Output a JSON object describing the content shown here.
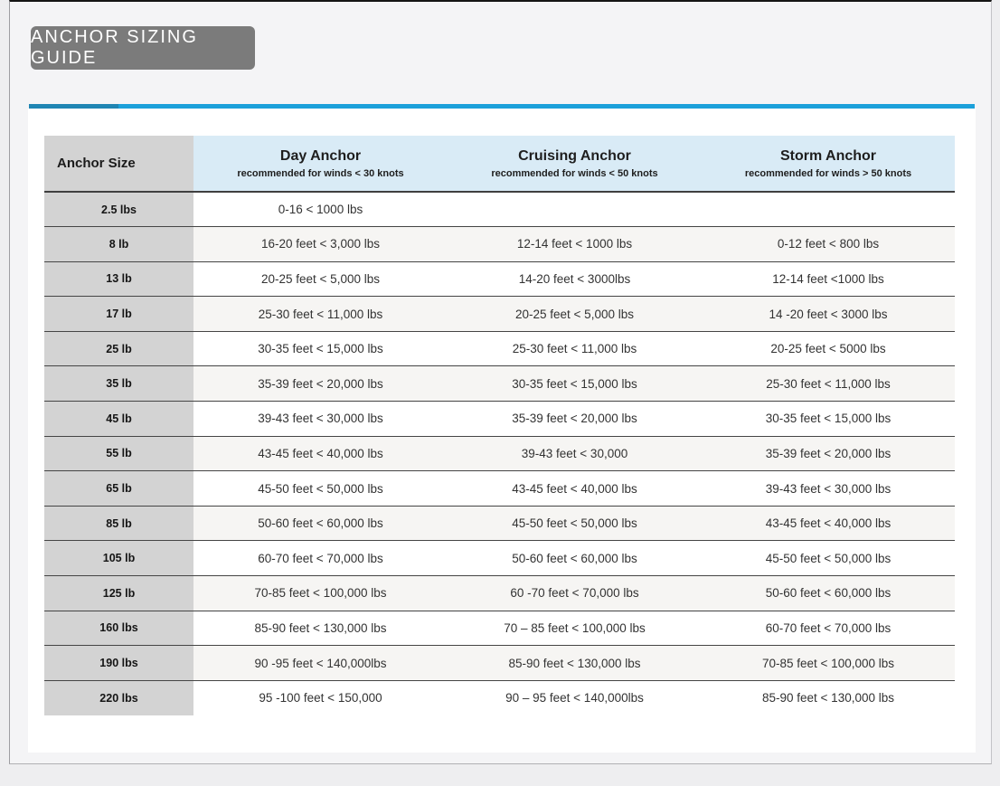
{
  "page": {
    "title": "ANCHOR SIZING GUIDE"
  },
  "colors": {
    "accent_blue": "#1ba0da",
    "accent_blue_dark": "#1f85b3",
    "title_button_bg": "#7b7b7b",
    "header_blue_bg": "#d9ebf6",
    "size_column_bg": "#d3d3d3",
    "zebra_row_bg": "#f6f5f3",
    "row_border": "#454545"
  },
  "table": {
    "columns": [
      {
        "label": "Anchor Size",
        "sublabel": ""
      },
      {
        "label": "Day Anchor",
        "sublabel": "recommended for winds < 30 knots"
      },
      {
        "label": "Cruising Anchor",
        "sublabel": "recommended for winds < 50 knots"
      },
      {
        "label": "Storm Anchor",
        "sublabel": "recommended for winds > 50 knots"
      }
    ],
    "rows": [
      {
        "size": "2.5 lbs",
        "day": "0-16 < 1000 lbs",
        "cruising": "",
        "storm": ""
      },
      {
        "size": "8 lb",
        "day": "16-20 feet < 3,000 lbs",
        "cruising": "12-14 feet < 1000 lbs",
        "storm": "0-12 feet < 800 lbs"
      },
      {
        "size": "13 lb",
        "day": "20-25 feet < 5,000 lbs",
        "cruising": "14-20 feet < 3000lbs",
        "storm": "12-14 feet <1000 lbs"
      },
      {
        "size": "17 lb",
        "day": "25-30 feet < 11,000 lbs",
        "cruising": "20-25 feet < 5,000 lbs",
        "storm": "14 -20 feet < 3000 lbs"
      },
      {
        "size": "25 lb",
        "day": "30-35 feet < 15,000 lbs",
        "cruising": "25-30 feet < 11,000 lbs",
        "storm": "20-25 feet < 5000 lbs"
      },
      {
        "size": "35 lb",
        "day": "35-39 feet < 20,000 lbs",
        "cruising": "30-35 feet < 15,000 lbs",
        "storm": "25-30 feet < 11,000 lbs"
      },
      {
        "size": "45 lb",
        "day": "39-43 feet < 30,000 lbs",
        "cruising": "35-39 feet < 20,000 lbs",
        "storm": "30-35 feet < 15,000 lbs"
      },
      {
        "size": "55 lb",
        "day": "43-45 feet < 40,000 lbs",
        "cruising": "39-43 feet < 30,000",
        "storm": "35-39 feet < 20,000 lbs"
      },
      {
        "size": "65 lb",
        "day": "45-50 feet < 50,000 lbs",
        "cruising": "43-45 feet < 40,000 lbs",
        "storm": "39-43 feet < 30,000 lbs"
      },
      {
        "size": "85 lb",
        "day": "50-60 feet < 60,000 lbs",
        "cruising": "45-50 feet < 50,000 lbs",
        "storm": "43-45 feet < 40,000 lbs"
      },
      {
        "size": "105 lb",
        "day": "60-70 feet < 70,000 lbs",
        "cruising": "50-60 feet < 60,000 lbs",
        "storm": "45-50 feet < 50,000 lbs"
      },
      {
        "size": "125 lb",
        "day": "70-85 feet < 100,000 lbs",
        "cruising": "60 -70 feet < 70,000 lbs",
        "storm": "50-60 feet < 60,000 lbs"
      },
      {
        "size": "160 lbs",
        "day": "85-90 feet < 130,000 lbs",
        "cruising": "70 – 85 feet < 100,000 lbs",
        "storm": "60-70 feet < 70,000 lbs"
      },
      {
        "size": "190 lbs",
        "day": "90 -95 feet < 140,000lbs",
        "cruising": "85-90 feet < 130,000 lbs",
        "storm": "70-85 feet < 100,000 lbs"
      },
      {
        "size": "220 lbs",
        "day": "95 -100 feet < 150,000",
        "cruising": "90 – 95 feet < 140,000lbs",
        "storm": "85-90 feet < 130,000 lbs"
      }
    ]
  }
}
